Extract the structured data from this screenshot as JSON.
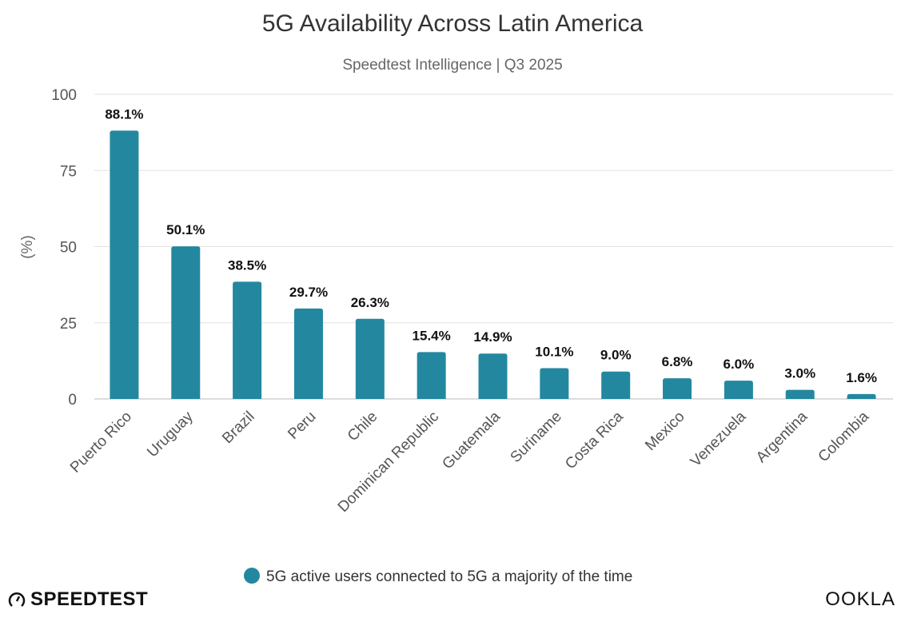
{
  "chart_data": {
    "type": "bar",
    "title": "5G Availability Across Latin America",
    "subtitle": "Speedtest Intelligence | Q3 2025",
    "ylabel": "(%)",
    "xlabel": "",
    "ylim": [
      0,
      100
    ],
    "yticks": [
      0,
      25,
      50,
      75,
      100
    ],
    "grid": true,
    "legend_position": "bottom",
    "categories": [
      "Puerto Rico",
      "Uruguay",
      "Brazil",
      "Peru",
      "Chile",
      "Dominican Republic",
      "Guatemala",
      "Suriname",
      "Costa Rica",
      "Mexico",
      "Venezuela",
      "Argentina",
      "Colombia"
    ],
    "series": [
      {
        "name": "5G active users connected to 5G a majority of the time",
        "values": [
          88.1,
          50.1,
          38.5,
          29.7,
          26.3,
          15.4,
          14.9,
          10.1,
          9.0,
          6.8,
          6.0,
          3.0,
          1.6
        ],
        "labels": [
          "88.1%",
          "50.1%",
          "38.5%",
          "29.7%",
          "26.3%",
          "15.4%",
          "14.9%",
          "10.1%",
          "9.0%",
          "6.8%",
          "6.0%",
          "3.0%",
          "1.6%"
        ],
        "color": "#23889f"
      }
    ]
  },
  "branding": {
    "left_logo": "SPEEDTEST",
    "right_logo": "OOKLA"
  }
}
